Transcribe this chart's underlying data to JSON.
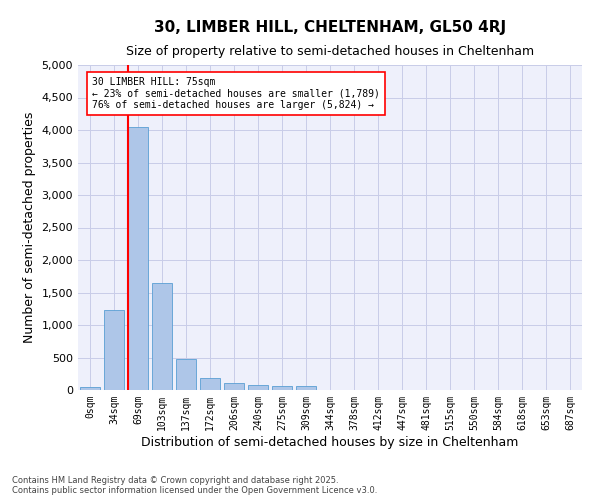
{
  "title": "30, LIMBER HILL, CHELTENHAM, GL50 4RJ",
  "subtitle": "Size of property relative to semi-detached houses in Cheltenham",
  "xlabel": "Distribution of semi-detached houses by size in Cheltenham",
  "ylabel": "Number of semi-detached properties",
  "footer_line1": "Contains HM Land Registry data © Crown copyright and database right 2025.",
  "footer_line2": "Contains public sector information licensed under the Open Government Licence v3.0.",
  "bar_color": "#aec6e8",
  "bar_edge_color": "#5a9fd4",
  "vline_color": "red",
  "vline_x_index": 2,
  "annotation_text": "30 LIMBER HILL: 75sqm\n← 23% of semi-detached houses are smaller (1,789)\n76% of semi-detached houses are larger (5,824) →",
  "annotation_box_color": "white",
  "annotation_box_edge_color": "red",
  "categories": [
    "0sqm",
    "34sqm",
    "69sqm",
    "103sqm",
    "137sqm",
    "172sqm",
    "206sqm",
    "240sqm",
    "275sqm",
    "309sqm",
    "344sqm",
    "378sqm",
    "412sqm",
    "447sqm",
    "481sqm",
    "515sqm",
    "550sqm",
    "584sqm",
    "618sqm",
    "653sqm",
    "687sqm"
  ],
  "values": [
    50,
    1230,
    4050,
    1640,
    480,
    190,
    110,
    75,
    60,
    55,
    0,
    0,
    0,
    0,
    0,
    0,
    0,
    0,
    0,
    0,
    0
  ],
  "ylim": [
    0,
    5000
  ],
  "yticks": [
    0,
    500,
    1000,
    1500,
    2000,
    2500,
    3000,
    3500,
    4000,
    4500,
    5000
  ],
  "background_color": "#eef0fb",
  "grid_color": "#c8cce8",
  "title_fontsize": 11,
  "subtitle_fontsize": 9,
  "tick_fontsize": 7,
  "label_fontsize": 9,
  "annotation_fontsize": 7,
  "footer_fontsize": 6
}
